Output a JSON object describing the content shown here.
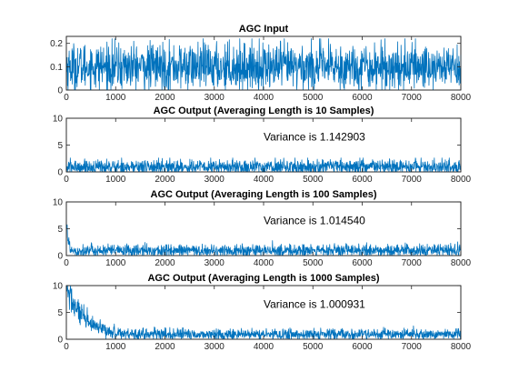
{
  "chart_data": [
    {
      "type": "line",
      "title": "AGC Input",
      "x_range": [
        0,
        8000
      ],
      "ylim": [
        0,
        0.23
      ],
      "x_ticks": [
        0,
        1000,
        2000,
        3000,
        4000,
        5000,
        6000,
        7000,
        8000
      ],
      "y_ticks": [
        0,
        0.1,
        0.2
      ],
      "series": [
        {
          "color": "#0072BD",
          "signal": "noise",
          "base_level": 0.1,
          "min": 0.0,
          "max": 0.22,
          "n_samples": 8000
        }
      ]
    },
    {
      "type": "line",
      "title": "AGC Output (Averaging Length is 10 Samples)",
      "annotation": "Variance is 1.142903",
      "x_range": [
        0,
        8000
      ],
      "ylim": [
        0,
        10
      ],
      "x_ticks": [
        0,
        1000,
        2000,
        3000,
        4000,
        5000,
        6000,
        7000,
        8000
      ],
      "y_ticks": [
        0,
        5,
        10
      ],
      "series": [
        {
          "color": "#0072BD",
          "signal": "noise",
          "base_level": 0.9,
          "min": 0.0,
          "max": 2.6,
          "n_samples": 8000
        }
      ]
    },
    {
      "type": "line",
      "title": "AGC Output (Averaging Length is 100 Samples)",
      "annotation": "Variance is 1.014540",
      "x_range": [
        0,
        8000
      ],
      "ylim": [
        0,
        10
      ],
      "x_ticks": [
        0,
        1000,
        2000,
        3000,
        4000,
        5000,
        6000,
        7000,
        8000
      ],
      "y_ticks": [
        0,
        5,
        10
      ],
      "series": [
        {
          "color": "#0072BD",
          "signal": "noise with initial transient",
          "base_level": 0.9,
          "min": 0.0,
          "max": 2.3,
          "peak": 5.8,
          "transient_length": 120,
          "n_samples": 8000
        }
      ]
    },
    {
      "type": "line",
      "title": "AGC Output (Averaging Length is 1000 Samples)",
      "annotation": "Variance is 1.000931",
      "x_range": [
        0,
        8000
      ],
      "ylim": [
        0,
        10
      ],
      "x_ticks": [
        0,
        1000,
        2000,
        3000,
        4000,
        5000,
        6000,
        7000,
        8000
      ],
      "y_ticks": [
        0,
        5,
        10
      ],
      "series": [
        {
          "color": "#0072BD",
          "signal": "noise with initial transient",
          "base_level": 0.9,
          "min": 0.0,
          "max": 2.1,
          "peak": 10,
          "transient_length": 1000,
          "n_samples": 8000
        }
      ]
    }
  ]
}
